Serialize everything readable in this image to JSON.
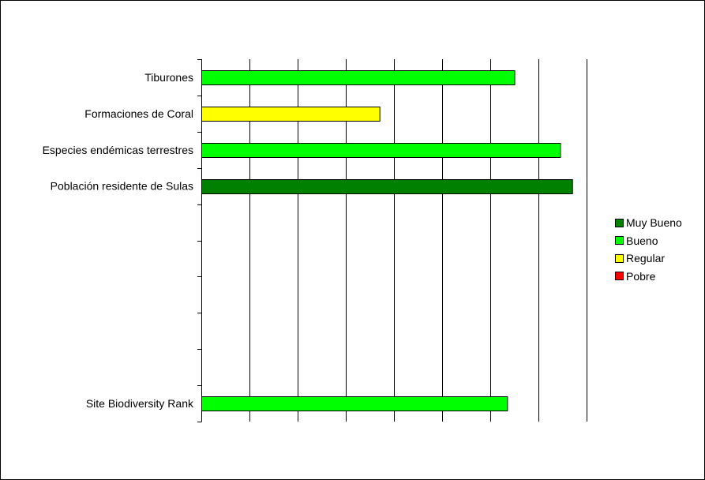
{
  "chart_data": {
    "type": "bar",
    "orientation": "horizontal",
    "title": "",
    "xlabel": "",
    "ylabel": "",
    "xlim": [
      0,
      8
    ],
    "x_gridlines_every": 1,
    "x_tick_labels_shown": false,
    "grid": true,
    "legend_position": "right",
    "categories": [
      "Tiburones",
      "Formaciones de Coral",
      "Especies endémicas terrestres",
      "Población residente de Sulas",
      "",
      "",
      "",
      "",
      "",
      "Site Biodiversity Rank"
    ],
    "values": [
      6.5,
      3.7,
      7.45,
      7.7,
      null,
      null,
      null,
      null,
      null,
      6.35
    ],
    "bar_series": [
      "Bueno",
      "Regular",
      "Bueno",
      "Muy Bueno",
      null,
      null,
      null,
      null,
      null,
      "Bueno"
    ],
    "series": [
      {
        "name": "Muy Bueno",
        "color": "#008000"
      },
      {
        "name": "Bueno",
        "color": "#00ff00"
      },
      {
        "name": "Regular",
        "color": "#ffff00"
      },
      {
        "name": "Pobre",
        "color": "#ff0000"
      }
    ]
  }
}
